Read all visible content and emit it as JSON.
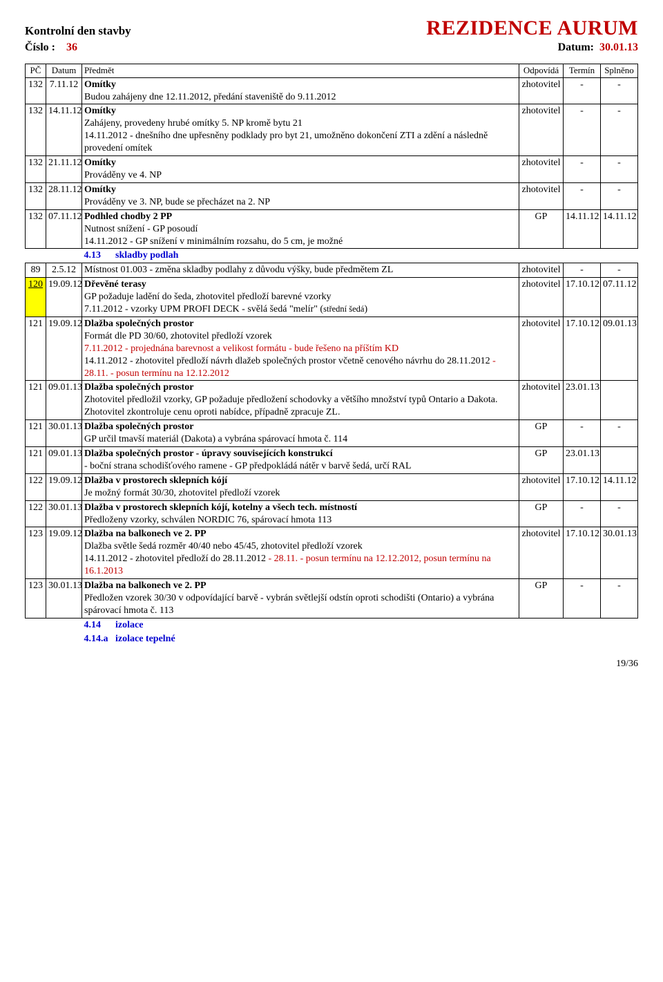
{
  "header": {
    "title_left": "Kontrolní den stavby",
    "title_right": "REZIDENCE AURUM",
    "sub_left_label": "Číslo :",
    "sub_left_value": "36",
    "sub_right_label": "Datum:",
    "sub_right_value": "30.01.13"
  },
  "columns": {
    "pc": "PČ",
    "datum": "Datum",
    "predmet": "Předmět",
    "odpovida": "Odpovídá",
    "termin": "Termín",
    "splneno": "Splněno"
  },
  "rows": [
    {
      "pc": "132",
      "datum": "7.11.12",
      "subject": [
        {
          "text": "Omítky",
          "bold": true
        },
        {
          "text": "Budou zahájeny dne 12.11.2012, předání staveniště do 9.11.2012"
        }
      ],
      "resp": "zhotovitel",
      "term": "-",
      "spl": "-"
    },
    {
      "pc": "132",
      "datum": "14.11.12",
      "subject": [
        {
          "text": "Omítky",
          "bold": true
        },
        {
          "text": "Zahájeny, provedeny hrubé omítky 5. NP kromě bytu 21"
        },
        {
          "text": "14.11.2012 - dnešního dne upřesněny podklady pro byt 21, umožněno dokončení ZTI a zdění a následně provedení omítek"
        }
      ],
      "resp": "zhotovitel",
      "term": "-",
      "spl": "-"
    },
    {
      "pc": "132",
      "datum": "21.11.12",
      "subject": [
        {
          "text": "Omítky",
          "bold": true
        },
        {
          "text": "Prováděny ve 4. NP"
        }
      ],
      "resp": "zhotovitel",
      "term": "-",
      "spl": "-"
    },
    {
      "pc": "132",
      "datum": "28.11.12",
      "subject": [
        {
          "text": "Omítky",
          "bold": true
        },
        {
          "text": "Prováděny ve 3. NP, bude se přecházet na 2. NP"
        }
      ],
      "resp": "zhotovitel",
      "term": "-",
      "spl": "-"
    },
    {
      "pc": "132",
      "datum": "07.11.12",
      "subject": [
        {
          "text": "Podhled chodby 2 PP",
          "bold": true
        },
        {
          "text": "Nutnost snížení - GP posoudí"
        },
        {
          "text": "14.11.2012 - GP snížení v minimálním rozsahu, do 5 cm, je možné"
        }
      ],
      "resp": "GP",
      "term": "14.11.12",
      "spl": "14.11.12"
    },
    {
      "section": true,
      "num": "4.13",
      "label": "skladby podlah"
    },
    {
      "pc": "89",
      "datum": "2.5.12",
      "subject": [
        {
          "text": "Místnost 01.003 - změna skladby podlahy z důvodu výšky, bude předmětem ZL"
        }
      ],
      "resp": "zhotovitel",
      "term": "-",
      "spl": "-"
    },
    {
      "pc": "120",
      "datum": "19.09.12",
      "pc_yellow": true,
      "subject": [
        {
          "text": "Dřevěné terasy",
          "bold": true
        },
        {
          "text": "GP požaduje ladění do šeda, zhotovitel předloží barevné vzorky"
        },
        {
          "html": "7.11.2012 - vzorky UPM PROFI DECK - svělá šedá \"melír\" (<span class='smallp'>střední šedá</span>)"
        }
      ],
      "resp": "zhotovitel",
      "term": "17.10.12",
      "spl": "07.11.12"
    },
    {
      "pc": "121",
      "datum": "19.09.12",
      "subject": [
        {
          "text": "Dlažba společných prostor",
          "bold": true
        },
        {
          "text": "Formát dle PD 30/60, zhotovitel předloží vzorek"
        },
        {
          "text": "7.11.2012 - projednána barevnost a velikost formátu - bude řešeno na příštím KD",
          "red": true
        },
        {
          "html": "14.11.2012 - zhotovitel předloží návrh dlažeb společných prostor včetně cenového návrhu do 28.11.2012 <span class='red'>- 28.11. - posun termínu na 12.12.2012</span>"
        }
      ],
      "resp": "zhotovitel",
      "term": "17.10.12",
      "spl": "09.01.13"
    },
    {
      "pc": "121",
      "datum": "09.01.13",
      "subject": [
        {
          "text": "Dlažba společných prostor",
          "bold": true
        },
        {
          "text": "Zhotovitel předložil vzorky, GP požaduje předložení schodovky a většího množství typů Ontario a Dakota."
        },
        {
          "text": "Zhotovitel zkontroluje cenu oproti nabídce, případně zpracuje ZL."
        }
      ],
      "resp": "zhotovitel",
      "term": "23.01.13",
      "spl": ""
    },
    {
      "pc": "121",
      "datum": "30.01.13",
      "subject": [
        {
          "text": "Dlažba společných prostor",
          "bold": true
        },
        {
          "text": "GP určil tmavší materiál (Dakota) a vybrána spárovací hmota č. 114"
        }
      ],
      "resp": "GP",
      "term": "-",
      "spl": "-"
    },
    {
      "pc": "121",
      "datum": "09.01.13",
      "subject": [
        {
          "text": "Dlažba společných prostor - úpravy souvisejících konstrukcí",
          "bold": true
        },
        {
          "text": "- boční strana schodišťového ramene - GP předpokládá nátěr v barvě šedá, určí RAL"
        }
      ],
      "resp": "GP",
      "term": "23.01.13",
      "spl": ""
    },
    {
      "pc": "122",
      "datum": "19.09.12",
      "subject": [
        {
          "text": "Dlažba v prostorech sklepních kójí",
          "bold": true
        },
        {
          "text": "Je možný formát 30/30, zhotovitel předloží vzorek"
        }
      ],
      "resp": "zhotovitel",
      "term": "17.10.12",
      "spl": "14.11.12"
    },
    {
      "pc": "122",
      "datum": "30.01.13",
      "subject": [
        {
          "text": "Dlažba v prostorech sklepních kójí, kotelny a všech tech. místností",
          "bold": true
        },
        {
          "text": "Předloženy vzorky, schválen NORDIC 76, spárovací hmota 113"
        }
      ],
      "resp": "GP",
      "term": "-",
      "spl": "-"
    },
    {
      "pc": "123",
      "datum": "19.09.12",
      "subject": [
        {
          "text": "Dlažba na balkonech ve 2. PP",
          "bold": true
        },
        {
          "text": "Dlažba světle šedá rozměr 40/40 nebo 45/45, zhotovitel předloží vzorek"
        },
        {
          "html": "14.11.2012 - zhotovitel předloží do 28.11.2012 <span class='red'>- 28.11. - posun termínu na 12.12.2012,</span> <span class='red'>posun termínu na 16.1.2013</span>"
        }
      ],
      "resp": "zhotovitel",
      "term": "17.10.12",
      "spl": "30.01.13"
    },
    {
      "pc": "123",
      "datum": "30.01.13",
      "subject": [
        {
          "text": "Dlažba na balkonech ve 2. PP",
          "bold": true
        },
        {
          "text": "Předložen vzorek 30/30 v odpovídající barvě - vybrán světlejší odstín  oproti schodišti (Ontario) a vybrána spárovací hmota č. 113"
        }
      ],
      "resp": "GP",
      "term": "-",
      "spl": "-"
    },
    {
      "section": true,
      "num": "4.14",
      "label": "izolace"
    },
    {
      "section": true,
      "num": "4.14.a",
      "label": "izolace tepelné"
    }
  ],
  "footer": {
    "page": "19/36"
  },
  "colors": {
    "red": "#c00000",
    "blue": "#0000d0",
    "yellow_highlight": "#ffff00",
    "border": "#000000",
    "background": "#ffffff"
  }
}
